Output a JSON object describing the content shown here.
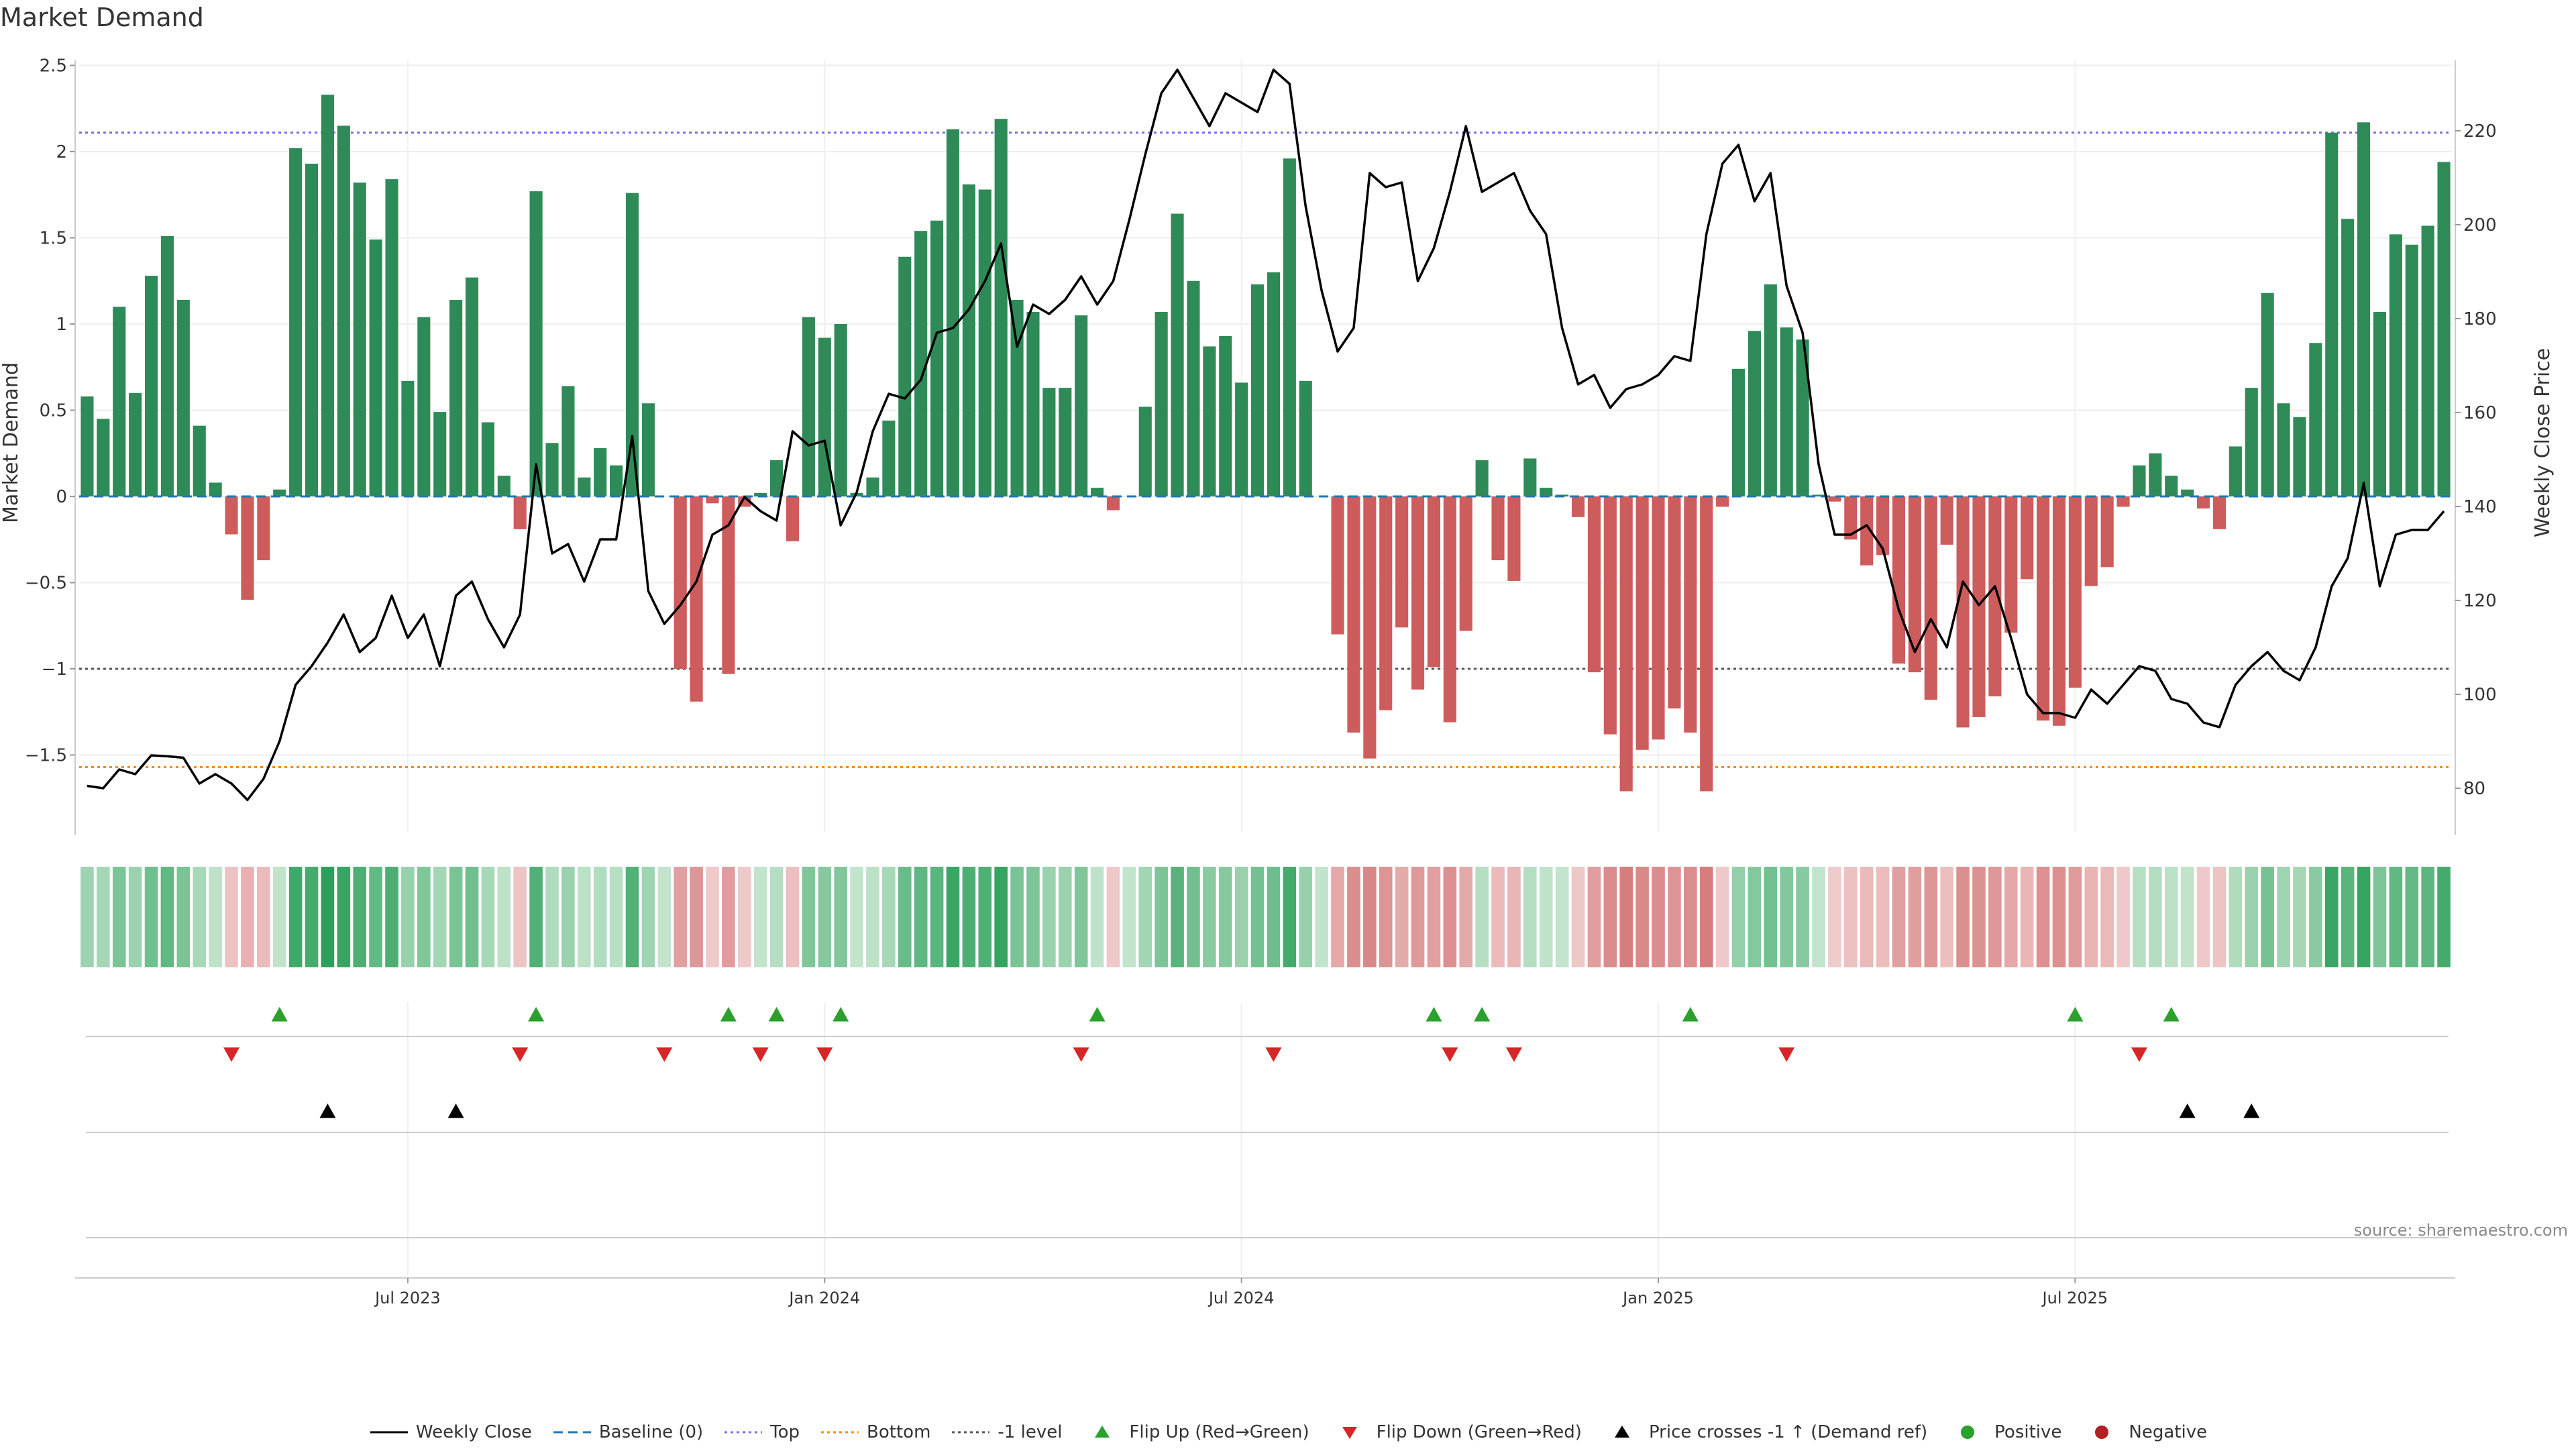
{
  "chart_data": {
    "type": "bar",
    "title": "Market Demand",
    "ylabel_left": "Market Demand",
    "ylabel_right": "Weekly Close Price",
    "ylim_left": [
      -1.95,
      2.6
    ],
    "ylim_right": [
      70,
      240
    ],
    "yticks_left": [
      2.5,
      2,
      1.5,
      1,
      0.5,
      0,
      -0.5,
      -1,
      -1.5
    ],
    "yticks_right": [
      220,
      200,
      180,
      160,
      140,
      120,
      100,
      80
    ],
    "xticks": [
      {
        "week": 20,
        "label": "Jul 2023"
      },
      {
        "week": 46,
        "label": "Jan 2024"
      },
      {
        "week": 72,
        "label": "Jul 2024"
      },
      {
        "week": 98,
        "label": "Jan 2025"
      },
      {
        "week": 124,
        "label": "Jul 2025"
      }
    ],
    "reference_lines": {
      "top": 2.11,
      "bottom": -1.57,
      "minus_one": -1,
      "baseline": 0
    },
    "colors": {
      "positive": "#2e8b57",
      "negative": "#cd5c5c",
      "price": "#000000",
      "baseline": "#1f77b4",
      "top": "#7b68ee",
      "bottom": "#ff8c00",
      "minus_one": "#555555",
      "flip_up": "#2ca02c",
      "flip_down": "#d62728",
      "cross": "#000000",
      "legend_positive": "#2ca02c",
      "legend_negative": "#b22222"
    },
    "series": [
      {
        "name": "Market Demand",
        "values": [
          0.58,
          0.45,
          1.1,
          0.6,
          1.28,
          1.51,
          1.14,
          0.41,
          0.08,
          -0.22,
          -0.6,
          -0.37,
          0.04,
          2.02,
          1.93,
          2.33,
          2.15,
          1.82,
          1.49,
          1.84,
          0.67,
          1.04,
          0.49,
          1.14,
          1.27,
          0.43,
          0.12,
          -0.19,
          1.77,
          0.31,
          0.64,
          0.11,
          0.28,
          0.18,
          1.76,
          0.54,
          0,
          -1.0,
          -1.19,
          -0.04,
          -1.03,
          -0.06,
          0.02,
          0.21,
          -0.26,
          1.04,
          0.92,
          1.0,
          0.02,
          0.11,
          0.44,
          1.39,
          1.54,
          1.6,
          2.13,
          1.81,
          1.78,
          2.19,
          1.14,
          1.07,
          0.63,
          0.63,
          1.05,
          0.05,
          -0.08,
          0,
          0.52,
          1.07,
          1.64,
          1.25,
          0.87,
          0.93,
          0.66,
          1.23,
          1.3,
          1.96,
          0.67,
          0,
          -0.8,
          -1.37,
          -1.52,
          -1.24,
          -0.76,
          -1.12,
          -0.99,
          -1.31,
          -0.78,
          0.21,
          -0.37,
          -0.49,
          0.22,
          0.05,
          0.01,
          -0.12,
          -1.02,
          -1.38,
          -1.71,
          -1.47,
          -1.41,
          -1.23,
          -1.37,
          -1.71,
          -0.06,
          0.74,
          0.96,
          1.23,
          0.98,
          0.91,
          0.01,
          -0.03,
          -0.25,
          -0.4,
          -0.34,
          -0.97,
          -1.02,
          -1.18,
          -0.28,
          -1.34,
          -1.28,
          -1.16,
          -0.79,
          -0.48,
          -1.3,
          -1.33,
          -1.11,
          -0.52,
          -0.41,
          -0.06,
          0.18,
          0.25,
          0.12,
          0.04,
          -0.07,
          -0.19,
          0.29,
          0.63,
          1.18,
          0.54,
          0.46,
          0.89,
          2.11,
          1.61,
          2.17,
          1.07,
          1.52,
          1.46,
          1.57,
          1.94
        ]
      },
      {
        "name": "Weekly Close",
        "values": [
          80.5,
          80,
          84,
          83,
          87,
          86.8,
          86.5,
          81,
          83,
          81,
          77.5,
          82,
          90,
          102,
          106,
          111,
          117,
          109,
          112,
          121,
          112,
          117,
          106,
          121,
          124,
          116,
          110,
          117,
          149,
          130,
          132,
          124,
          133,
          133,
          155,
          122,
          115,
          119,
          124,
          134,
          136,
          142,
          139,
          137,
          156,
          153,
          154,
          136,
          143,
          156,
          164,
          163,
          167,
          177,
          178,
          182,
          188,
          196,
          174,
          183,
          181,
          184,
          189,
          183,
          188,
          201,
          215,
          228,
          233,
          227,
          221,
          228,
          226,
          224,
          233,
          230,
          204,
          186,
          173,
          178,
          211,
          208,
          209,
          188,
          195,
          207,
          221,
          207,
          209,
          211,
          203,
          198,
          178,
          166,
          168,
          161,
          165,
          166,
          168,
          172,
          171,
          198,
          213,
          217,
          205,
          211,
          187,
          177,
          149,
          134,
          134,
          136,
          131,
          118,
          109,
          116,
          110,
          124,
          119,
          123,
          112,
          100,
          96,
          96,
          95,
          101,
          98,
          102,
          106,
          105,
          99,
          98,
          94,
          93,
          102,
          106,
          109,
          105,
          103,
          110,
          123,
          129,
          145,
          123,
          134,
          135,
          135,
          139
        ]
      }
    ],
    "flip_up_weeks": [
      12,
      28,
      40,
      43,
      47,
      63,
      84,
      87,
      100,
      124,
      130
    ],
    "flip_down_weeks": [
      9,
      27,
      36,
      42,
      46,
      62,
      74,
      85,
      89,
      106,
      128
    ],
    "price_cross_weeks": [
      15,
      23,
      131,
      135
    ],
    "legend": [
      {
        "label": "Weekly Close",
        "symbol": "line"
      },
      {
        "label": "Baseline (0)",
        "symbol": "dash"
      },
      {
        "label": "Top",
        "symbol": "dot-top"
      },
      {
        "label": "Bottom",
        "symbol": "dot-bottom"
      },
      {
        "label": "-1 level",
        "symbol": "dot-minus"
      },
      {
        "label": "Flip Up (Red→Green)",
        "symbol": "tri-up"
      },
      {
        "label": "Flip Down (Green→Red)",
        "symbol": "tri-down"
      },
      {
        "label": "Price crosses -1 ↑ (Demand ref)",
        "symbol": "tri-black"
      },
      {
        "label": "Positive",
        "symbol": "dot-pos"
      },
      {
        "label": "Negative",
        "symbol": "dot-neg"
      }
    ]
  },
  "source": "source: sharemaestro.com"
}
